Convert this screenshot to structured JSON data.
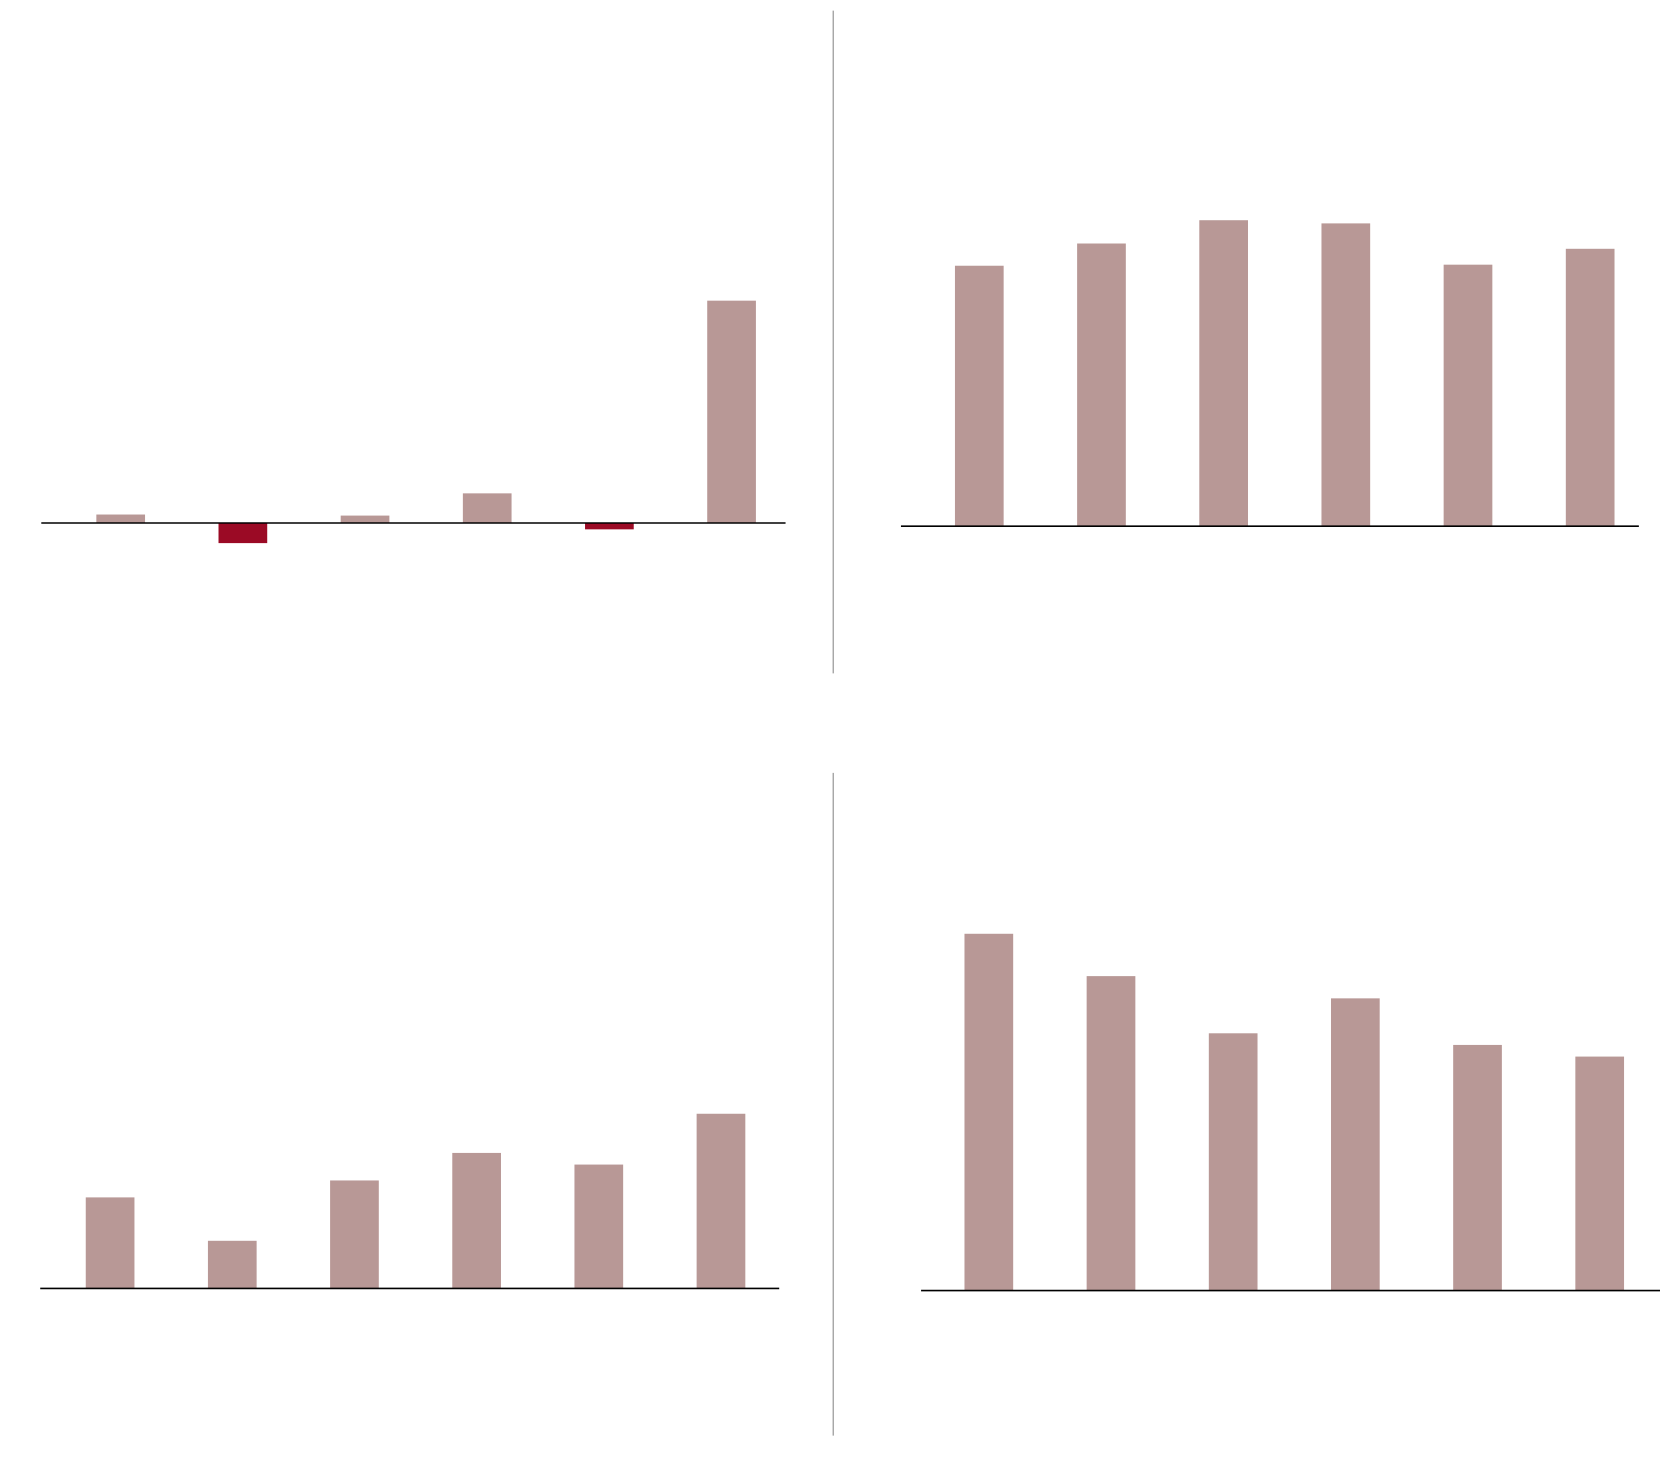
{
  "chart_data": [
    {
      "type": "bar",
      "categories": [
        null,
        null,
        null,
        null,
        null,
        null
      ],
      "values": [
        8,
        -19,
        7,
        28,
        -6,
        210
      ],
      "color": "#b89896",
      "negative_color": "#9b0a25",
      "ylim": [
        -142,
        484
      ]
    },
    {
      "type": "bar",
      "categories": [
        null,
        null,
        null,
        null,
        null,
        null
      ],
      "values": [
        246,
        267,
        289,
        286,
        247,
        262
      ],
      "color": "#b89896",
      "negative_color": "#9b0a25",
      "ylim": [
        -139,
        487
      ]
    },
    {
      "type": "bar",
      "categories": [
        null,
        null,
        null,
        null,
        null,
        null
      ],
      "values": [
        86,
        45,
        102,
        128,
        117,
        165
      ],
      "color": "#b89896",
      "negative_color": "#9b0a25",
      "ylim": [
        -139,
        487
      ]
    },
    {
      "type": "bar",
      "categories": [
        null,
        null,
        null,
        null,
        null,
        null
      ],
      "values": [
        337,
        297,
        243,
        276,
        232,
        221
      ],
      "color": "#b89896",
      "negative_color": "#9b0a25",
      "ylim": [
        -137,
        489
      ]
    }
  ]
}
